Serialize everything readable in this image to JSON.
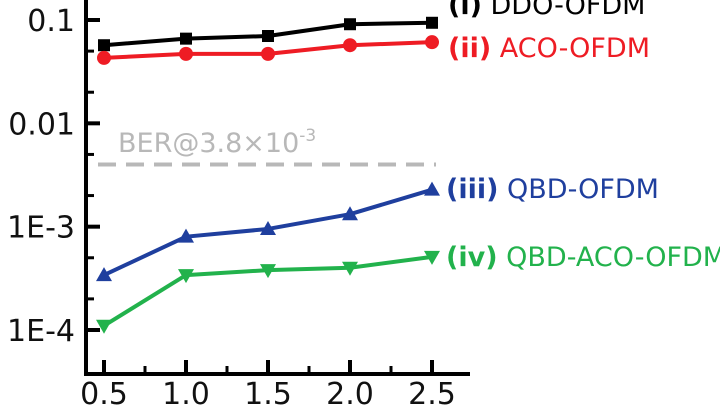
{
  "chart_data": {
    "type": "line",
    "title": "",
    "xlabel": "",
    "ylabel": "",
    "yscale": "log",
    "x": [
      0.5,
      1.0,
      1.5,
      2.0,
      2.5
    ],
    "xlim": [
      0.43,
      2.6
    ],
    "ylim": [
      6e-05,
      0.22
    ],
    "x_ticks": [
      "0.5",
      "1.0",
      "1.5",
      "2.0",
      "2.5"
    ],
    "y_ticks": [
      {
        "value": 0.1,
        "label": "0.1"
      },
      {
        "value": 0.01,
        "label": "0.01"
      },
      {
        "value": 0.001,
        "label": "1E-3"
      },
      {
        "value": 0.0001,
        "label": "1E-4"
      }
    ],
    "threshold": {
      "value": 0.004,
      "label_prefix": "BER@3.8×10",
      "label_exponent": "-3",
      "color": "#b8b8b8"
    },
    "series": [
      {
        "name": "(i) DDO-OFDM",
        "color": "#000000",
        "marker": "square",
        "values": [
          0.057,
          0.066,
          0.07,
          0.091,
          0.094
        ]
      },
      {
        "name": "(ii) ACO-OFDM",
        "color": "#ee1c24",
        "marker": "circle",
        "values": [
          0.043,
          0.047,
          0.047,
          0.057,
          0.061
        ]
      },
      {
        "name": "(iii) QBD-OFDM",
        "color": "#1f3f9e",
        "marker": "triangle-up",
        "values": [
          0.00034,
          0.0008,
          0.00095,
          0.00132,
          0.00228
        ]
      },
      {
        "name": "(iv) QBD-ACO-OFDM",
        "color": "#22b24c",
        "marker": "triangle-down",
        "values": [
          0.00011,
          0.00034,
          0.00038,
          0.0004,
          0.00051
        ]
      }
    ]
  }
}
